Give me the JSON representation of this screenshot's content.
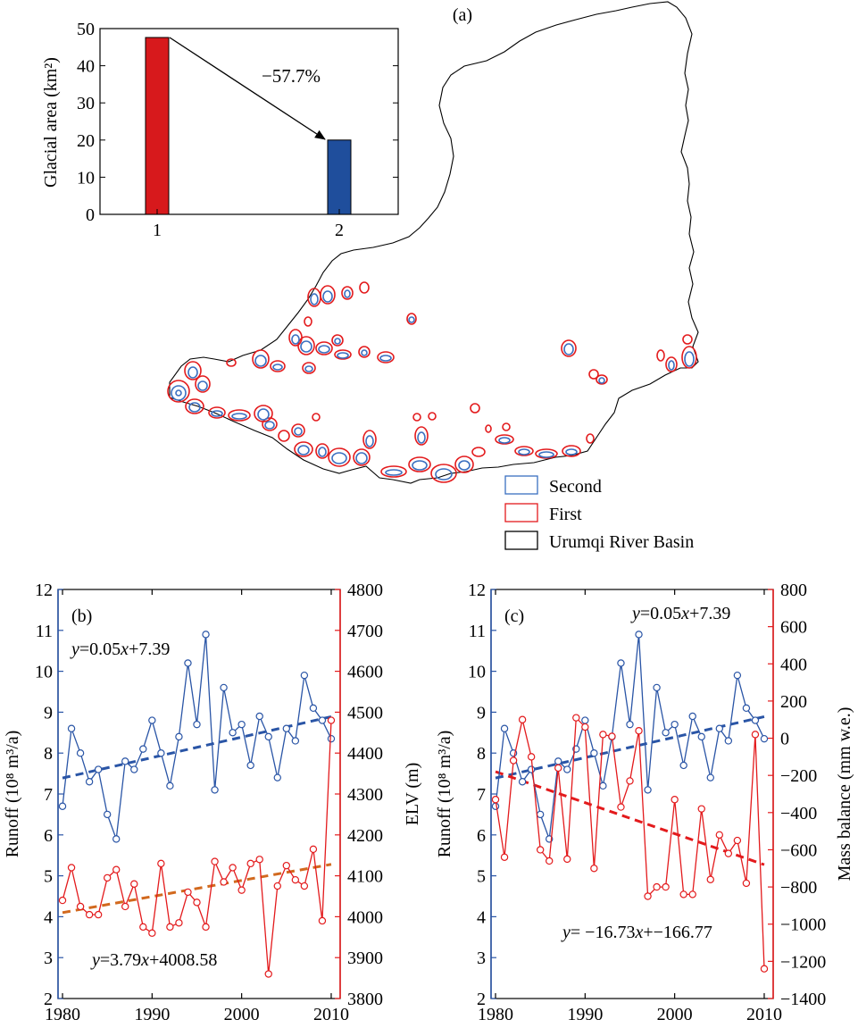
{
  "colors": {
    "blue": "#2a55a6",
    "red": "#e31a1c",
    "orange": "#d2691e",
    "bar_red": "#d7191c",
    "bar_blue": "#1f4e9c",
    "black": "#000000"
  },
  "panel_a": {
    "label": "(a)",
    "legend": [
      {
        "label": "Second",
        "color": "#3a6fc0"
      },
      {
        "label": "First",
        "color": "#e31a1c"
      },
      {
        "label": "Urumqi River Basin",
        "color": "#000000"
      }
    ]
  },
  "chart_data": [
    {
      "type": "bar",
      "categories": [
        "1",
        "2"
      ],
      "values": [
        47.6,
        20.0
      ],
      "ylabel": "Glacial area (km²)",
      "ylim": [
        0,
        50
      ],
      "yticks": [
        0,
        10,
        20,
        30,
        40,
        50
      ],
      "annotation": "−57.7%",
      "colors": [
        "#d7191c",
        "#1f4e9c"
      ]
    },
    {
      "type": "line",
      "label": "(b)",
      "x": [
        1980,
        1981,
        1982,
        1983,
        1984,
        1985,
        1986,
        1987,
        1988,
        1989,
        1990,
        1991,
        1992,
        1993,
        1994,
        1995,
        1996,
        1997,
        1998,
        1999,
        2000,
        2001,
        2002,
        2003,
        2004,
        2005,
        2006,
        2007,
        2008,
        2009,
        2010
      ],
      "xticks": [
        1980,
        1990,
        2000,
        2010
      ],
      "xlim": [
        1979.5,
        2011
      ],
      "ylabel_left": "Runoff (10⁸ m³/a)",
      "ylim_left": [
        2,
        12
      ],
      "yticks_left": [
        2,
        3,
        4,
        5,
        6,
        7,
        8,
        9,
        10,
        11,
        12
      ],
      "ylabel_right": "ELV (m)",
      "ylim_right": [
        3800,
        4800
      ],
      "yticks_right": [
        3800,
        3900,
        4000,
        4100,
        4200,
        4300,
        4400,
        4500,
        4600,
        4700,
        4800
      ],
      "series": [
        {
          "axis": "left",
          "color": "#2a55a6",
          "values": [
            6.7,
            8.6,
            8.0,
            7.3,
            7.6,
            6.5,
            5.9,
            7.8,
            7.6,
            8.1,
            8.8,
            8.0,
            7.2,
            8.4,
            10.2,
            8.7,
            10.9,
            7.1,
            9.6,
            8.5,
            8.7,
            7.7,
            8.9,
            8.4,
            7.4,
            8.6,
            8.3,
            9.9,
            9.1,
            8.8,
            8.35
          ]
        },
        {
          "axis": "right",
          "color": "#e31a1c",
          "values": [
            4040,
            4120,
            4025,
            4005,
            4005,
            4095,
            4115,
            4025,
            4080,
            3975,
            3960,
            4130,
            3975,
            3985,
            4060,
            4035,
            3975,
            4135,
            4085,
            4120,
            4065,
            4130,
            4140,
            3860,
            4075,
            4125,
            4090,
            4075,
            4165,
            3990,
            4480
          ]
        }
      ],
      "trends": [
        {
          "axis": "left",
          "color": "#2a55a6",
          "slope": 0.05,
          "intercept": 7.39,
          "equation": "y=0.05x+7.39"
        },
        {
          "axis": "right",
          "color": "#d2691e",
          "x_from": 1980,
          "y_from": 4010,
          "x_to": 2010,
          "y_to": 4128,
          "equation": "y=3.79x+4008.58"
        }
      ]
    },
    {
      "type": "line",
      "label": "(c)",
      "x": [
        1980,
        1981,
        1982,
        1983,
        1984,
        1985,
        1986,
        1987,
        1988,
        1989,
        1990,
        1991,
        1992,
        1993,
        1994,
        1995,
        1996,
        1997,
        1998,
        1999,
        2000,
        2001,
        2002,
        2003,
        2004,
        2005,
        2006,
        2007,
        2008,
        2009,
        2010
      ],
      "xticks": [
        1980,
        1990,
        2000,
        2010
      ],
      "xlim": [
        1979.5,
        2011
      ],
      "ylabel_left": "Runoff (10⁸ m³/a)",
      "ylim_left": [
        2,
        12
      ],
      "yticks_left": [
        2,
        3,
        4,
        5,
        6,
        7,
        8,
        9,
        10,
        11,
        12
      ],
      "ylabel_right": "Mass balance (mm w.e.)",
      "ylim_right": [
        -1400,
        800
      ],
      "yticks_right": [
        -1400,
        -1200,
        -1000,
        -800,
        -600,
        -400,
        -200,
        0,
        200,
        400,
        600,
        800
      ],
      "series": [
        {
          "axis": "left",
          "color": "#2a55a6",
          "values": [
            6.7,
            8.6,
            8.0,
            7.3,
            7.6,
            6.5,
            5.9,
            7.8,
            7.6,
            8.1,
            8.8,
            8.0,
            7.2,
            8.4,
            10.2,
            8.7,
            10.9,
            7.1,
            9.6,
            8.5,
            8.7,
            7.7,
            8.9,
            8.4,
            7.4,
            8.6,
            8.3,
            9.9,
            9.1,
            8.8,
            8.35
          ]
        },
        {
          "axis": "right",
          "color": "#e31a1c",
          "values": [
            -330,
            -640,
            -120,
            100,
            -100,
            -600,
            -660,
            -160,
            -650,
            110,
            60,
            -700,
            20,
            10,
            -370,
            -230,
            40,
            -850,
            -800,
            -800,
            -330,
            -840,
            -840,
            -380,
            -760,
            -520,
            -620,
            -550,
            -780,
            20,
            -1240
          ]
        }
      ],
      "trends": [
        {
          "axis": "left",
          "color": "#2a55a6",
          "slope": 0.05,
          "intercept": 7.39,
          "equation": "y=0.05x+7.39"
        },
        {
          "axis": "right",
          "color": "#e31a1c",
          "x_from": 1980,
          "y_from": -180,
          "x_to": 2010,
          "y_to": -680,
          "equation": "y= −16.73x+−166.77"
        }
      ]
    }
  ]
}
